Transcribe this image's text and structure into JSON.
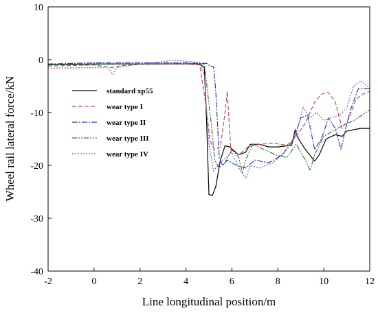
{
  "chart_data": {
    "type": "line",
    "xlabel": "Line longitudinal position/m",
    "ylabel": "Wheel rail lateral force/kN",
    "xlim": [
      -2,
      12
    ],
    "ylim": [
      -40,
      10
    ],
    "xticks": [
      "-2",
      "0",
      "2",
      "4",
      "6",
      "8",
      "10",
      "12"
    ],
    "yticks": [
      "10",
      "0",
      "-10",
      "-20",
      "-30",
      "-40"
    ],
    "grid": false,
    "legend": "center-left",
    "series": [
      {
        "name": "standard xp55",
        "color": "#000000",
        "dash": "",
        "points": [
          [
            -2,
            -0.9
          ],
          [
            0,
            -0.8
          ],
          [
            2,
            -0.8
          ],
          [
            4,
            -0.8
          ],
          [
            4.6,
            -0.8
          ],
          [
            4.8,
            -1.5
          ],
          [
            4.9,
            -12
          ],
          [
            5.0,
            -25.5
          ],
          [
            5.15,
            -25.7
          ],
          [
            5.3,
            -24
          ],
          [
            5.5,
            -19
          ],
          [
            5.7,
            -16.3
          ],
          [
            5.9,
            -16.5
          ],
          [
            6.3,
            -18
          ],
          [
            6.6,
            -17.5
          ],
          [
            6.8,
            -16
          ],
          [
            7.2,
            -16
          ],
          [
            7.6,
            -16.5
          ],
          [
            8.0,
            -16.5
          ],
          [
            8.6,
            -16.2
          ],
          [
            8.75,
            -13.3
          ],
          [
            8.9,
            -15
          ],
          [
            9.2,
            -17
          ],
          [
            9.6,
            -19.2
          ],
          [
            9.8,
            -18
          ],
          [
            10.1,
            -15
          ],
          [
            10.5,
            -14.2
          ],
          [
            10.8,
            -14.5
          ],
          [
            11.0,
            -13.5
          ],
          [
            11.6,
            -13
          ],
          [
            12,
            -13
          ]
        ]
      },
      {
        "name": "wear type I",
        "color": "#c0504d",
        "dash": "6 3",
        "points": [
          [
            -2,
            -1.2
          ],
          [
            0,
            -1.0
          ],
          [
            0.8,
            -1.5
          ],
          [
            1.2,
            -1.1
          ],
          [
            2,
            -0.9
          ],
          [
            4,
            -0.8
          ],
          [
            4.6,
            -1.0
          ],
          [
            4.85,
            -8
          ],
          [
            5.05,
            -15.5
          ],
          [
            5.25,
            -17
          ],
          [
            5.5,
            -16.5
          ],
          [
            5.7,
            -10
          ],
          [
            5.8,
            -6
          ],
          [
            5.95,
            -17
          ],
          [
            6.3,
            -18
          ],
          [
            6.7,
            -16.5
          ],
          [
            7.2,
            -16
          ],
          [
            7.8,
            -15.8
          ],
          [
            8.4,
            -16.2
          ],
          [
            8.8,
            -14.5
          ],
          [
            9.2,
            -12
          ],
          [
            9.6,
            -8
          ],
          [
            9.9,
            -6.5
          ],
          [
            10.2,
            -6.2
          ],
          [
            10.5,
            -8
          ],
          [
            10.8,
            -13
          ],
          [
            11.1,
            -11
          ],
          [
            11.4,
            -7.5
          ],
          [
            11.7,
            -6.5
          ],
          [
            12,
            -6
          ]
        ]
      },
      {
        "name": "wear type II",
        "color": "#1f3fae",
        "dash": "8 2 2 2",
        "points": [
          [
            -2,
            -0.8
          ],
          [
            0,
            -0.6
          ],
          [
            2,
            -0.6
          ],
          [
            4,
            -0.6
          ],
          [
            4.9,
            -0.7
          ],
          [
            5.05,
            -1.2
          ],
          [
            5.2,
            -1.3
          ],
          [
            5.3,
            -6
          ],
          [
            5.45,
            -18.5
          ],
          [
            5.6,
            -20
          ],
          [
            5.8,
            -19
          ],
          [
            6.2,
            -20
          ],
          [
            6.6,
            -20.5
          ],
          [
            7.0,
            -19
          ],
          [
            7.6,
            -19.5
          ],
          [
            8.2,
            -18
          ],
          [
            8.7,
            -15
          ],
          [
            9.0,
            -11
          ],
          [
            9.3,
            -10.5
          ],
          [
            9.6,
            -17
          ],
          [
            9.9,
            -15
          ],
          [
            10.2,
            -11
          ],
          [
            10.5,
            -13
          ],
          [
            10.75,
            -17
          ],
          [
            10.95,
            -13
          ],
          [
            11.2,
            -9
          ],
          [
            11.5,
            -5.5
          ],
          [
            11.8,
            -5.5
          ],
          [
            12,
            -5.5
          ]
        ]
      },
      {
        "name": "wear type III",
        "color": "#2e7d32",
        "dash": "7 2 2 2 2 2",
        "points": [
          [
            -2,
            -1.0
          ],
          [
            0,
            -0.9
          ],
          [
            2,
            -0.8
          ],
          [
            4,
            -0.7
          ],
          [
            4.8,
            -0.8
          ],
          [
            5.1,
            -12
          ],
          [
            5.25,
            -19
          ],
          [
            5.45,
            -20.5
          ],
          [
            5.7,
            -19.5
          ],
          [
            6.0,
            -17
          ],
          [
            6.3,
            -18.5
          ],
          [
            6.45,
            -21.5
          ],
          [
            6.6,
            -19
          ],
          [
            6.9,
            -16
          ],
          [
            7.4,
            -17
          ],
          [
            7.9,
            -18
          ],
          [
            8.4,
            -18.5
          ],
          [
            8.8,
            -16
          ],
          [
            9.2,
            -19
          ],
          [
            9.4,
            -21
          ],
          [
            9.6,
            -18
          ],
          [
            10.0,
            -14.5
          ],
          [
            10.4,
            -13.5
          ],
          [
            10.8,
            -12.5
          ],
          [
            11.3,
            -11.5
          ],
          [
            12,
            -9.5
          ]
        ]
      },
      {
        "name": "wear type IV",
        "color": "#7e57c2",
        "dash": "2 2",
        "points": [
          [
            -2,
            -1.6
          ],
          [
            0,
            -1.5
          ],
          [
            0.6,
            -1.4
          ],
          [
            0.8,
            -2.8
          ],
          [
            1.0,
            -1.5
          ],
          [
            2,
            -0.8
          ],
          [
            2.6,
            -0.6
          ],
          [
            3.4,
            -0.1
          ],
          [
            4,
            -0.3
          ],
          [
            4.6,
            -0.5
          ],
          [
            4.8,
            -3
          ],
          [
            5.0,
            -16
          ],
          [
            5.2,
            -21
          ],
          [
            5.4,
            -20
          ],
          [
            5.6,
            -19
          ],
          [
            6.0,
            -17.5
          ],
          [
            6.3,
            -20.5
          ],
          [
            6.6,
            -22.5
          ],
          [
            6.8,
            -20
          ],
          [
            7.2,
            -20.5
          ],
          [
            7.8,
            -19.5
          ],
          [
            8.4,
            -17
          ],
          [
            8.8,
            -14
          ],
          [
            9.1,
            -9
          ],
          [
            9.4,
            -11
          ],
          [
            9.7,
            -10
          ],
          [
            10.0,
            -11.5
          ],
          [
            10.3,
            -11
          ],
          [
            10.7,
            -10.5
          ],
          [
            11.0,
            -9
          ],
          [
            11.3,
            -5
          ],
          [
            11.6,
            -4
          ],
          [
            11.9,
            -5
          ],
          [
            12,
            -5.5
          ]
        ]
      }
    ]
  }
}
